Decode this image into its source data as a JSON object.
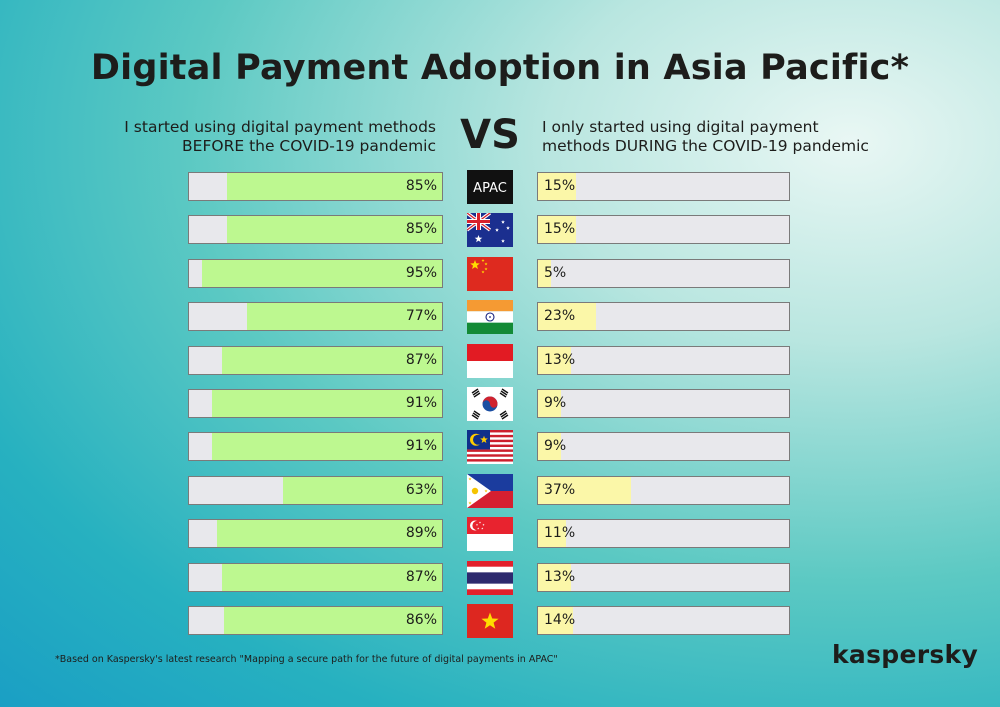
{
  "title": "Digital Payment Adoption in Asia Pacific*",
  "left_heading": [
    "I started using digital payment methods",
    "BEFORE the COVID-19 pandemic"
  ],
  "right_heading": [
    "I only started using digital payment",
    "methods DURING the COVID-19 pandemic"
  ],
  "vs_label": "VS",
  "footnote": "*Based on Kaspersky's latest research \"Mapping a secure path for the future of digital payments in APAC\"",
  "logo": "kaspersky",
  "colors": {
    "before": "#bdf890",
    "during": "#fbf7a8",
    "track": "#e8e8ec"
  },
  "chart_data": {
    "type": "bar",
    "categories": [
      "APAC",
      "Australia",
      "China",
      "India",
      "Indonesia",
      "South Korea",
      "Malaysia",
      "Philippines",
      "Singapore",
      "Thailand",
      "Vietnam"
    ],
    "category_labels_shown": [
      "APAC"
    ],
    "series": [
      {
        "values": [
          85,
          85,
          95,
          77,
          87,
          91,
          91,
          63,
          89,
          87,
          86
        ],
        "labels": [
          "85%",
          "85%",
          "95%",
          "77%",
          "87%",
          "91%",
          "91%",
          "63%",
          "89%",
          "87%",
          "86%"
        ]
      },
      {
        "values": [
          15,
          15,
          5,
          23,
          13,
          9,
          9,
          37,
          11,
          13,
          14
        ],
        "labels": [
          "15%",
          "15%",
          "5%",
          "23%",
          "13%",
          "9%",
          "9%",
          "37%",
          "11%",
          "13%",
          "14%"
        ]
      }
    ],
    "unit": "%",
    "xlim": [
      0,
      100
    ],
    "flags": [
      "apac-badge-icon",
      "australia-flag-icon",
      "china-flag-icon",
      "india-flag-icon",
      "indonesia-flag-icon",
      "south-korea-flag-icon",
      "malaysia-flag-icon",
      "philippines-flag-icon",
      "singapore-flag-icon",
      "thailand-flag-icon",
      "vietnam-flag-icon"
    ]
  }
}
